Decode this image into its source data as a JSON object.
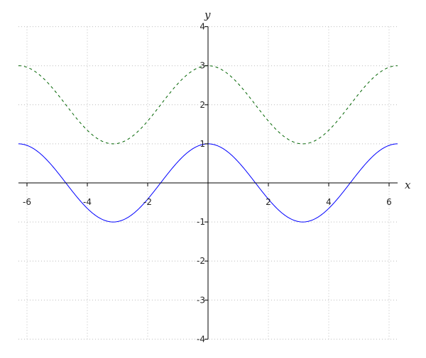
{
  "chart_data": {
    "type": "line",
    "xlabel": "x",
    "ylabel": "y",
    "xlim": [
      -6.2832,
      6.2832
    ],
    "ylim": [
      -4,
      4
    ],
    "xticks": [
      -6,
      -4,
      -2,
      2,
      4,
      6
    ],
    "xtick_labels": [
      "-6",
      "-4",
      "-2",
      "2",
      "4",
      "6"
    ],
    "yticks": [
      -4,
      -3,
      -2,
      -1,
      1,
      2,
      3,
      4
    ],
    "ytick_labels": [
      "-4",
      "-3",
      "-2",
      "-1",
      "1",
      "2",
      "3",
      "4"
    ],
    "grid": true,
    "series": [
      {
        "function": "cos(x)",
        "color": "#0000ff",
        "style": "solid"
      },
      {
        "function": "cos(x)+2",
        "color": "#006400",
        "style": "dashed"
      }
    ]
  }
}
